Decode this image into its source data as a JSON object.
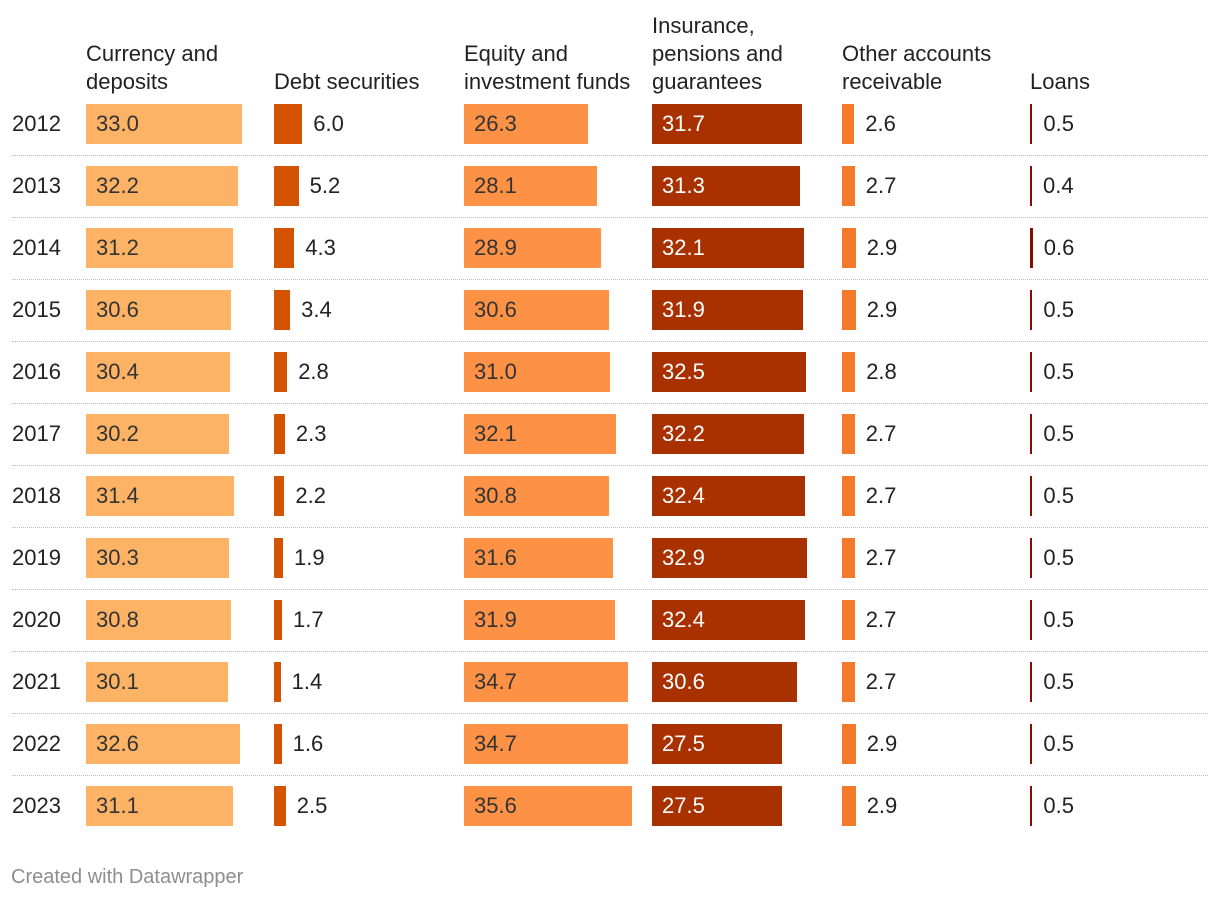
{
  "chart_data": {
    "type": "table",
    "title": "",
    "columns": [
      {
        "name": "Currency and deposits",
        "color": "#fdb366",
        "label_inside": true,
        "label_color": "#333333"
      },
      {
        "name": "Debt securities",
        "color": "#d45300",
        "label_inside": false,
        "label_color": "#222222"
      },
      {
        "name": "Equity and investment funds",
        "color": "#fd9246",
        "label_inside": true,
        "label_color": "#333333"
      },
      {
        "name": "Insurance, pensions and guarantees",
        "color": "#a93100",
        "label_inside": true,
        "label_color": "#ffffff"
      },
      {
        "name": "Other accounts receivable",
        "color": "#f4792b",
        "label_inside": false,
        "label_color": "#222222"
      },
      {
        "name": "Loans",
        "color": "#8a0c00",
        "label_inside": false,
        "label_color": "#222222"
      }
    ],
    "max_value": 36,
    "rows": [
      {
        "year": "2012",
        "values": [
          "33.0",
          "6.0",
          "26.3",
          "31.7",
          "2.6",
          "0.5"
        ]
      },
      {
        "year": "2013",
        "values": [
          "32.2",
          "5.2",
          "28.1",
          "31.3",
          "2.7",
          "0.4"
        ]
      },
      {
        "year": "2014",
        "values": [
          "31.2",
          "4.3",
          "28.9",
          "32.1",
          "2.9",
          "0.6"
        ]
      },
      {
        "year": "2015",
        "values": [
          "30.6",
          "3.4",
          "30.6",
          "31.9",
          "2.9",
          "0.5"
        ]
      },
      {
        "year": "2016",
        "values": [
          "30.4",
          "2.8",
          "31.0",
          "32.5",
          "2.8",
          "0.5"
        ]
      },
      {
        "year": "2017",
        "values": [
          "30.2",
          "2.3",
          "32.1",
          "32.2",
          "2.7",
          "0.5"
        ]
      },
      {
        "year": "2018",
        "values": [
          "31.4",
          "2.2",
          "30.8",
          "32.4",
          "2.7",
          "0.5"
        ]
      },
      {
        "year": "2019",
        "values": [
          "30.3",
          "1.9",
          "31.6",
          "32.9",
          "2.7",
          "0.5"
        ]
      },
      {
        "year": "2020",
        "values": [
          "30.8",
          "1.7",
          "31.9",
          "32.4",
          "2.7",
          "0.5"
        ]
      },
      {
        "year": "2021",
        "values": [
          "30.1",
          "1.4",
          "34.7",
          "30.6",
          "2.7",
          "0.5"
        ]
      },
      {
        "year": "2022",
        "values": [
          "32.6",
          "1.6",
          "34.7",
          "27.5",
          "2.9",
          "0.5"
        ]
      },
      {
        "year": "2023",
        "values": [
          "31.1",
          "2.5",
          "35.6",
          "27.5",
          "2.9",
          "0.5"
        ]
      }
    ]
  },
  "footer": {
    "credit": "Created with Datawrapper"
  }
}
